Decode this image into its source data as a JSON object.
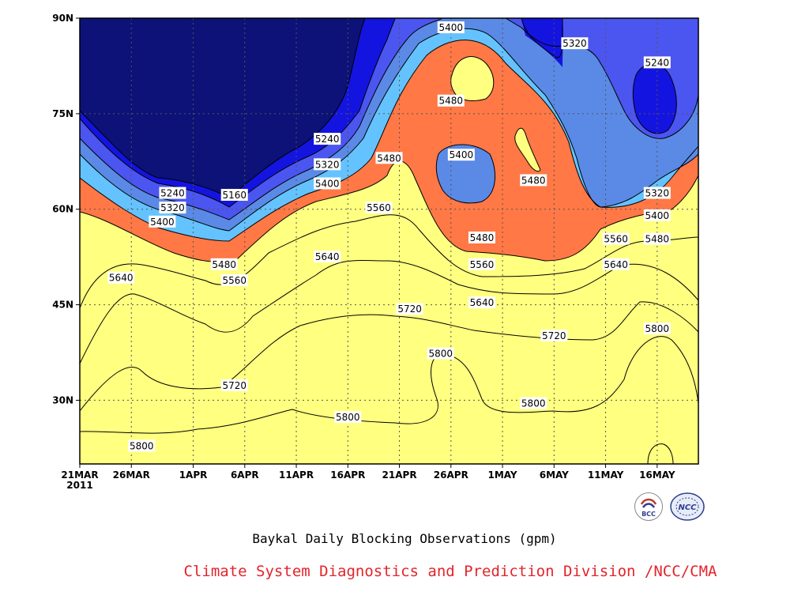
{
  "chart_data": {
    "type": "heatmap",
    "title": "Baykal Daily Blocking Observations (gpm)",
    "credit": "Climate System Diagnostics and Prediction Division /NCC/CMA",
    "x_ticks": [
      "21MAR",
      "26MAR",
      "1APR",
      "6APR",
      "11APR",
      "16APR",
      "21APR",
      "26APR",
      "1MAY",
      "6MAY",
      "11MAY",
      "16MAY"
    ],
    "x_year_label": "2011",
    "y_ticks": [
      "30N",
      "45N",
      "60N",
      "75N",
      "90N"
    ],
    "xlim": [
      "2011-03-21",
      "2011-05-20"
    ],
    "ylim": [
      20,
      90
    ],
    "grid": true,
    "levels": [
      5160,
      5240,
      5320,
      5400,
      5480,
      5560,
      5640,
      5720,
      5800
    ],
    "fill_colors": [
      "#0c1278",
      "#1414e0",
      "#4b55f0",
      "#5a8ae6",
      "#64c3ff",
      "#ffff80",
      "#ffe0a0",
      "#ff9f64",
      "#ff7846",
      "#f46e7a",
      "#e6323c"
    ],
    "contour_labels": [
      {
        "text": "5400",
        "date": "2011-04-26",
        "lat": 88.5
      },
      {
        "text": "5320",
        "date": "2011-05-08",
        "lat": 86
      },
      {
        "text": "5240",
        "date": "2011-05-16",
        "lat": 83
      },
      {
        "text": "5480",
        "date": "2011-04-26",
        "lat": 77
      },
      {
        "text": "5240",
        "date": "2011-04-14",
        "lat": 71
      },
      {
        "text": "5480",
        "date": "2011-04-20",
        "lat": 68
      },
      {
        "text": "5400",
        "date": "2011-04-27",
        "lat": 68.5
      },
      {
        "text": "5320",
        "date": "2011-04-14",
        "lat": 67
      },
      {
        "text": "5400",
        "date": "2011-04-14",
        "lat": 64
      },
      {
        "text": "5480",
        "date": "2011-05-04",
        "lat": 64.5
      },
      {
        "text": "5240",
        "date": "2011-03-30",
        "lat": 62.5
      },
      {
        "text": "5160",
        "date": "2011-04-05",
        "lat": 62.2
      },
      {
        "text": "5320",
        "date": "2011-05-16",
        "lat": 62.5
      },
      {
        "text": "5320",
        "date": "2011-03-30",
        "lat": 60.2
      },
      {
        "text": "5560",
        "date": "2011-04-19",
        "lat": 60.2
      },
      {
        "text": "5400",
        "date": "2011-05-16",
        "lat": 59
      },
      {
        "text": "5400",
        "date": "2011-03-29",
        "lat": 58
      },
      {
        "text": "5480",
        "date": "2011-04-29",
        "lat": 55.5
      },
      {
        "text": "5560",
        "date": "2011-05-12",
        "lat": 55.3
      },
      {
        "text": "5480",
        "date": "2011-05-16",
        "lat": 55.3
      },
      {
        "text": "5640",
        "date": "2011-04-14",
        "lat": 52.5
      },
      {
        "text": "5480",
        "date": "2011-04-04",
        "lat": 51.3
      },
      {
        "text": "5560",
        "date": "2011-04-29",
        "lat": 51.3
      },
      {
        "text": "5640",
        "date": "2011-05-12",
        "lat": 51.3
      },
      {
        "text": "5560",
        "date": "2011-04-05",
        "lat": 48.8
      },
      {
        "text": "5640",
        "date": "2011-03-25",
        "lat": 49.2
      },
      {
        "text": "5640",
        "date": "2011-04-29",
        "lat": 45.3
      },
      {
        "text": "5720",
        "date": "2011-04-22",
        "lat": 44.3
      },
      {
        "text": "5800",
        "date": "2011-05-16",
        "lat": 41.2
      },
      {
        "text": "5720",
        "date": "2011-05-06",
        "lat": 40.1
      },
      {
        "text": "5800",
        "date": "2011-04-25",
        "lat": 37.3
      },
      {
        "text": "5720",
        "date": "2011-04-05",
        "lat": 32.3
      },
      {
        "text": "5800",
        "date": "2011-05-04",
        "lat": 29.5
      },
      {
        "text": "5800",
        "date": "2011-04-16",
        "lat": 27.3
      },
      {
        "text": "5800",
        "date": "2011-03-27",
        "lat": 22.8
      }
    ]
  },
  "logos": {
    "left": "BCC",
    "right": "NCC"
  }
}
